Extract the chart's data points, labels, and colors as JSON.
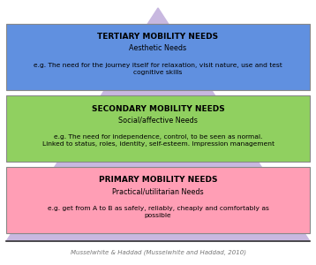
{
  "bg_color": "#ffffff",
  "pyramid_color": "#c8b8e0",
  "layers": [
    {
      "label": "PRIMARY MOBILITY NEEDS",
      "sublabel": "Practical/utilitarian Needs",
      "desc": "e.g. get from A to B as safely, reliably, cheaply and comfortably as\npossible",
      "color": "#ff9eb5",
      "border_color": "#888888"
    },
    {
      "label": "SECONDARY MOBILITY NEEDS",
      "sublabel": "Social/affective Needs",
      "desc": "e.g. The need for independence, control, to be seen as normal.\nLinked to status, roles, identity, self-esteem. Impression management",
      "color": "#90d060",
      "border_color": "#888888"
    },
    {
      "label": "TERTIARY MOBILITY NEEDS",
      "sublabel": "Aesthetic Needs",
      "desc": "e.g. The need for the journey itself for relaxation, visit nature, use and test\ncognitive skills",
      "color": "#6090e0",
      "border_color": "#888888"
    }
  ],
  "caption": "Musselwhite & Haddad (Musselwhite and Haddad, 2010)",
  "caption_color": "#777777",
  "title_fontsize": 6.5,
  "sublabel_fontsize": 5.8,
  "desc_fontsize": 5.4
}
